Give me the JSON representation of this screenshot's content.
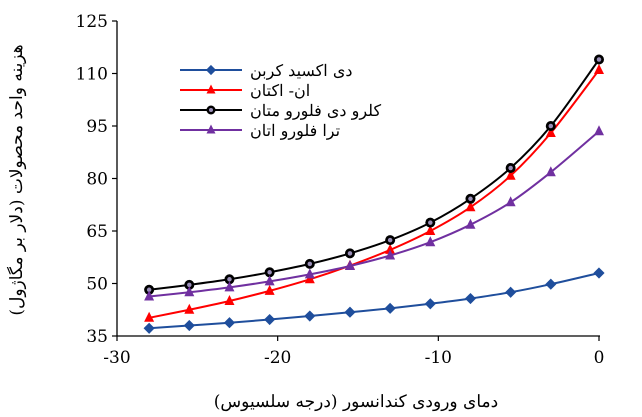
{
  "chart_data": {
    "type": "line",
    "xlabel": "دمای ورودی کندانسور (درجه سلسیوس)",
    "ylabel": "هزینه واحد محصولات (دلار بر مگاژول)",
    "xlim": [
      -30,
      0
    ],
    "ylim": [
      35,
      125
    ],
    "x_ticks": [
      -30,
      -20,
      -10,
      0
    ],
    "y_ticks": [
      35,
      50,
      65,
      80,
      95,
      110,
      125
    ],
    "x_tick_labels": [
      "-30",
      "-20",
      "-10",
      "0"
    ],
    "y_tick_labels": [
      "35",
      "50",
      "65",
      "80",
      "95",
      "110",
      "125"
    ],
    "grid": false,
    "legend_position": "top-left",
    "x": [
      -28,
      -25.5,
      -23,
      -20.5,
      -18,
      -15.5,
      -13,
      -10.5,
      -8,
      -5.5,
      -3,
      0
    ],
    "series": [
      {
        "name": "دی اکسید کربن",
        "color": "#1f4e9c",
        "marker": "diamond",
        "values": [
          37.2,
          38.0,
          38.8,
          39.7,
          40.7,
          41.8,
          42.9,
          44.2,
          45.7,
          47.5,
          49.8,
          53.0
        ]
      },
      {
        "name": "ان- اکتان",
        "color": "#ff0000",
        "marker": "triangle",
        "values": [
          40.2,
          42.5,
          45.0,
          47.9,
          51.2,
          55.1,
          59.6,
          65.0,
          71.8,
          80.8,
          93.0,
          111.0
        ]
      },
      {
        "name": "کلرو دی فلورو متان",
        "color": "#000000",
        "marker": "circle",
        "values": [
          48.2,
          49.6,
          51.2,
          53.2,
          55.6,
          58.6,
          62.4,
          67.4,
          74.2,
          83.0,
          95.0,
          114.0
        ]
      },
      {
        "name": "ترا فلورو اتان",
        "color": "#7030a0",
        "marker": "triangle",
        "values": [
          46.3,
          47.5,
          48.9,
          50.6,
          52.6,
          55.0,
          58.0,
          61.8,
          66.8,
          73.2,
          81.8,
          93.5
        ]
      }
    ]
  }
}
